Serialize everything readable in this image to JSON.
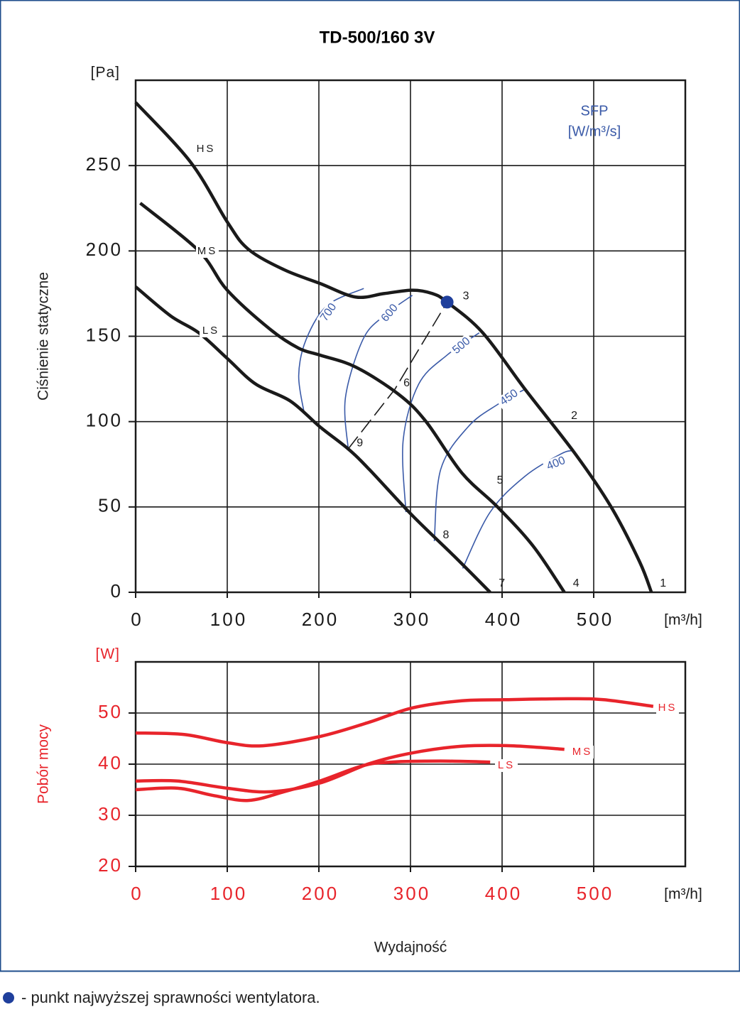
{
  "chart_data": [
    {
      "type": "line",
      "title": "TD-500/160 3V",
      "y_label": "Ciśnienie statyczne",
      "y_unit": "[Pa]",
      "x_unit": "[m³/h]",
      "xlim": [
        0,
        600
      ],
      "xticks": [
        0,
        100,
        200,
        300,
        400,
        500
      ],
      "ylim": [
        0,
        300
      ],
      "yticks": [
        0,
        50,
        100,
        150,
        200,
        250
      ],
      "grid": true,
      "tick_label_color": "#1a1a1a",
      "series": [
        {
          "name": "HS",
          "color": "#1a1a1a",
          "x": [
            0,
            60,
            100,
            123,
            162,
            201,
            240,
            271,
            302,
            324,
            340,
            379,
            425,
            480,
            519,
            550,
            563
          ],
          "values": [
            287,
            252,
            217,
            201,
            189,
            181,
            173,
            175,
            177,
            175,
            170,
            152,
            119,
            81,
            50,
            18,
            0
          ]
        },
        {
          "name": "MS",
          "color": "#1a1a1a",
          "x": [
            5,
            69,
            100,
            147,
            178,
            201,
            240,
            287,
            317,
            356,
            395,
            434,
            468
          ],
          "values": [
            228,
            200,
            177,
            154,
            143,
            139,
            132,
            116,
            100,
            70,
            50,
            27,
            0
          ]
        },
        {
          "name": "LS",
          "color": "#1a1a1a",
          "x": [
            0,
            38,
            69,
            100,
            131,
            169,
            201,
            232,
            255,
            302,
            348,
            387
          ],
          "values": [
            179,
            162,
            152,
            137,
            122,
            112,
            97,
            84,
            72,
            45,
            21,
            0
          ]
        }
      ],
      "sfp": {
        "title": "SFP",
        "unit": "[W/m³/s]",
        "color": "#3a5aa8",
        "lines": [
          {
            "label": "700",
            "x": [
              184,
              178,
              186,
              209,
              249
            ],
            "values": [
              105,
              127,
              148,
              168,
              178
            ]
          },
          {
            "label": "600",
            "x": [
              232,
              229,
              248,
              271,
              302
            ],
            "values": [
              84,
              114,
              148,
              162,
              174
            ]
          },
          {
            "label": "500",
            "x": [
              295,
              292,
              309,
              340,
              375
            ],
            "values": [
              47,
              89,
              122,
              139,
              152
            ]
          },
          {
            "label": "450",
            "x": [
              326,
              333,
              363,
              395,
              425
            ],
            "values": [
              30,
              72,
              97,
              110,
              119
            ]
          },
          {
            "label": "400",
            "x": [
              357,
              387,
              425,
              464,
              476
            ],
            "values": [
              14,
              47,
              68,
              81,
              83
            ]
          }
        ]
      },
      "efficiency_line": {
        "x": [
          232,
          283,
          340
        ],
        "values": [
          84,
          119,
          170
        ]
      },
      "points": [
        {
          "label": "1",
          "x": 563,
          "y": 0
        },
        {
          "label": "2",
          "x": 466,
          "y": 100
        },
        {
          "label": "3",
          "x": 340,
          "y": 170
        },
        {
          "label": "4",
          "x": 468,
          "y": 0
        },
        {
          "label": "5",
          "x": 385,
          "y": 62
        },
        {
          "label": "6",
          "x": 283,
          "y": 119
        },
        {
          "label": "7",
          "x": 387,
          "y": 0
        },
        {
          "label": "8",
          "x": 326,
          "y": 30
        },
        {
          "label": "9",
          "x": 232,
          "y": 84
        }
      ],
      "best_point_color": "#1f3f9c"
    },
    {
      "type": "line",
      "y_label": "Pobór mocy",
      "y_unit": "[W]",
      "x_unit": "[m³/h]",
      "x_label": "Wydajność",
      "xlim": [
        0,
        600
      ],
      "xticks": [
        0,
        100,
        200,
        300,
        400,
        500
      ],
      "ylim": [
        20,
        60
      ],
      "yticks": [
        20,
        30,
        40,
        50
      ],
      "grid": true,
      "tick_label_color": "#e8242b",
      "series": [
        {
          "name": "HS",
          "color": "#e8242b",
          "x": [
            0,
            53,
            100,
            139,
            201,
            255,
            302,
            356,
            402,
            472,
            511,
            565
          ],
          "values": [
            46.1,
            45.8,
            44.2,
            43.6,
            45.4,
            48.2,
            51,
            52.4,
            52.6,
            52.8,
            52.6,
            51.3
          ]
        },
        {
          "name": "MS",
          "color": "#e8242b",
          "x": [
            0,
            46,
            100,
            147,
            201,
            255,
            302,
            356,
            410,
            468
          ],
          "values": [
            36.7,
            36.7,
            35.3,
            34.6,
            36.3,
            40.1,
            42.2,
            43.5,
            43.6,
            42.9
          ]
        },
        {
          "name": "LS",
          "color": "#e8242b",
          "x": [
            0,
            46,
            84,
            123,
            162,
            201,
            248,
            279,
            333,
            387
          ],
          "values": [
            35,
            35.3,
            33.9,
            32.9,
            34.6,
            36.7,
            39.7,
            40.4,
            40.6,
            40.4
          ]
        }
      ]
    }
  ],
  "footer": "- punkt najwyższej sprawności wentylatora."
}
